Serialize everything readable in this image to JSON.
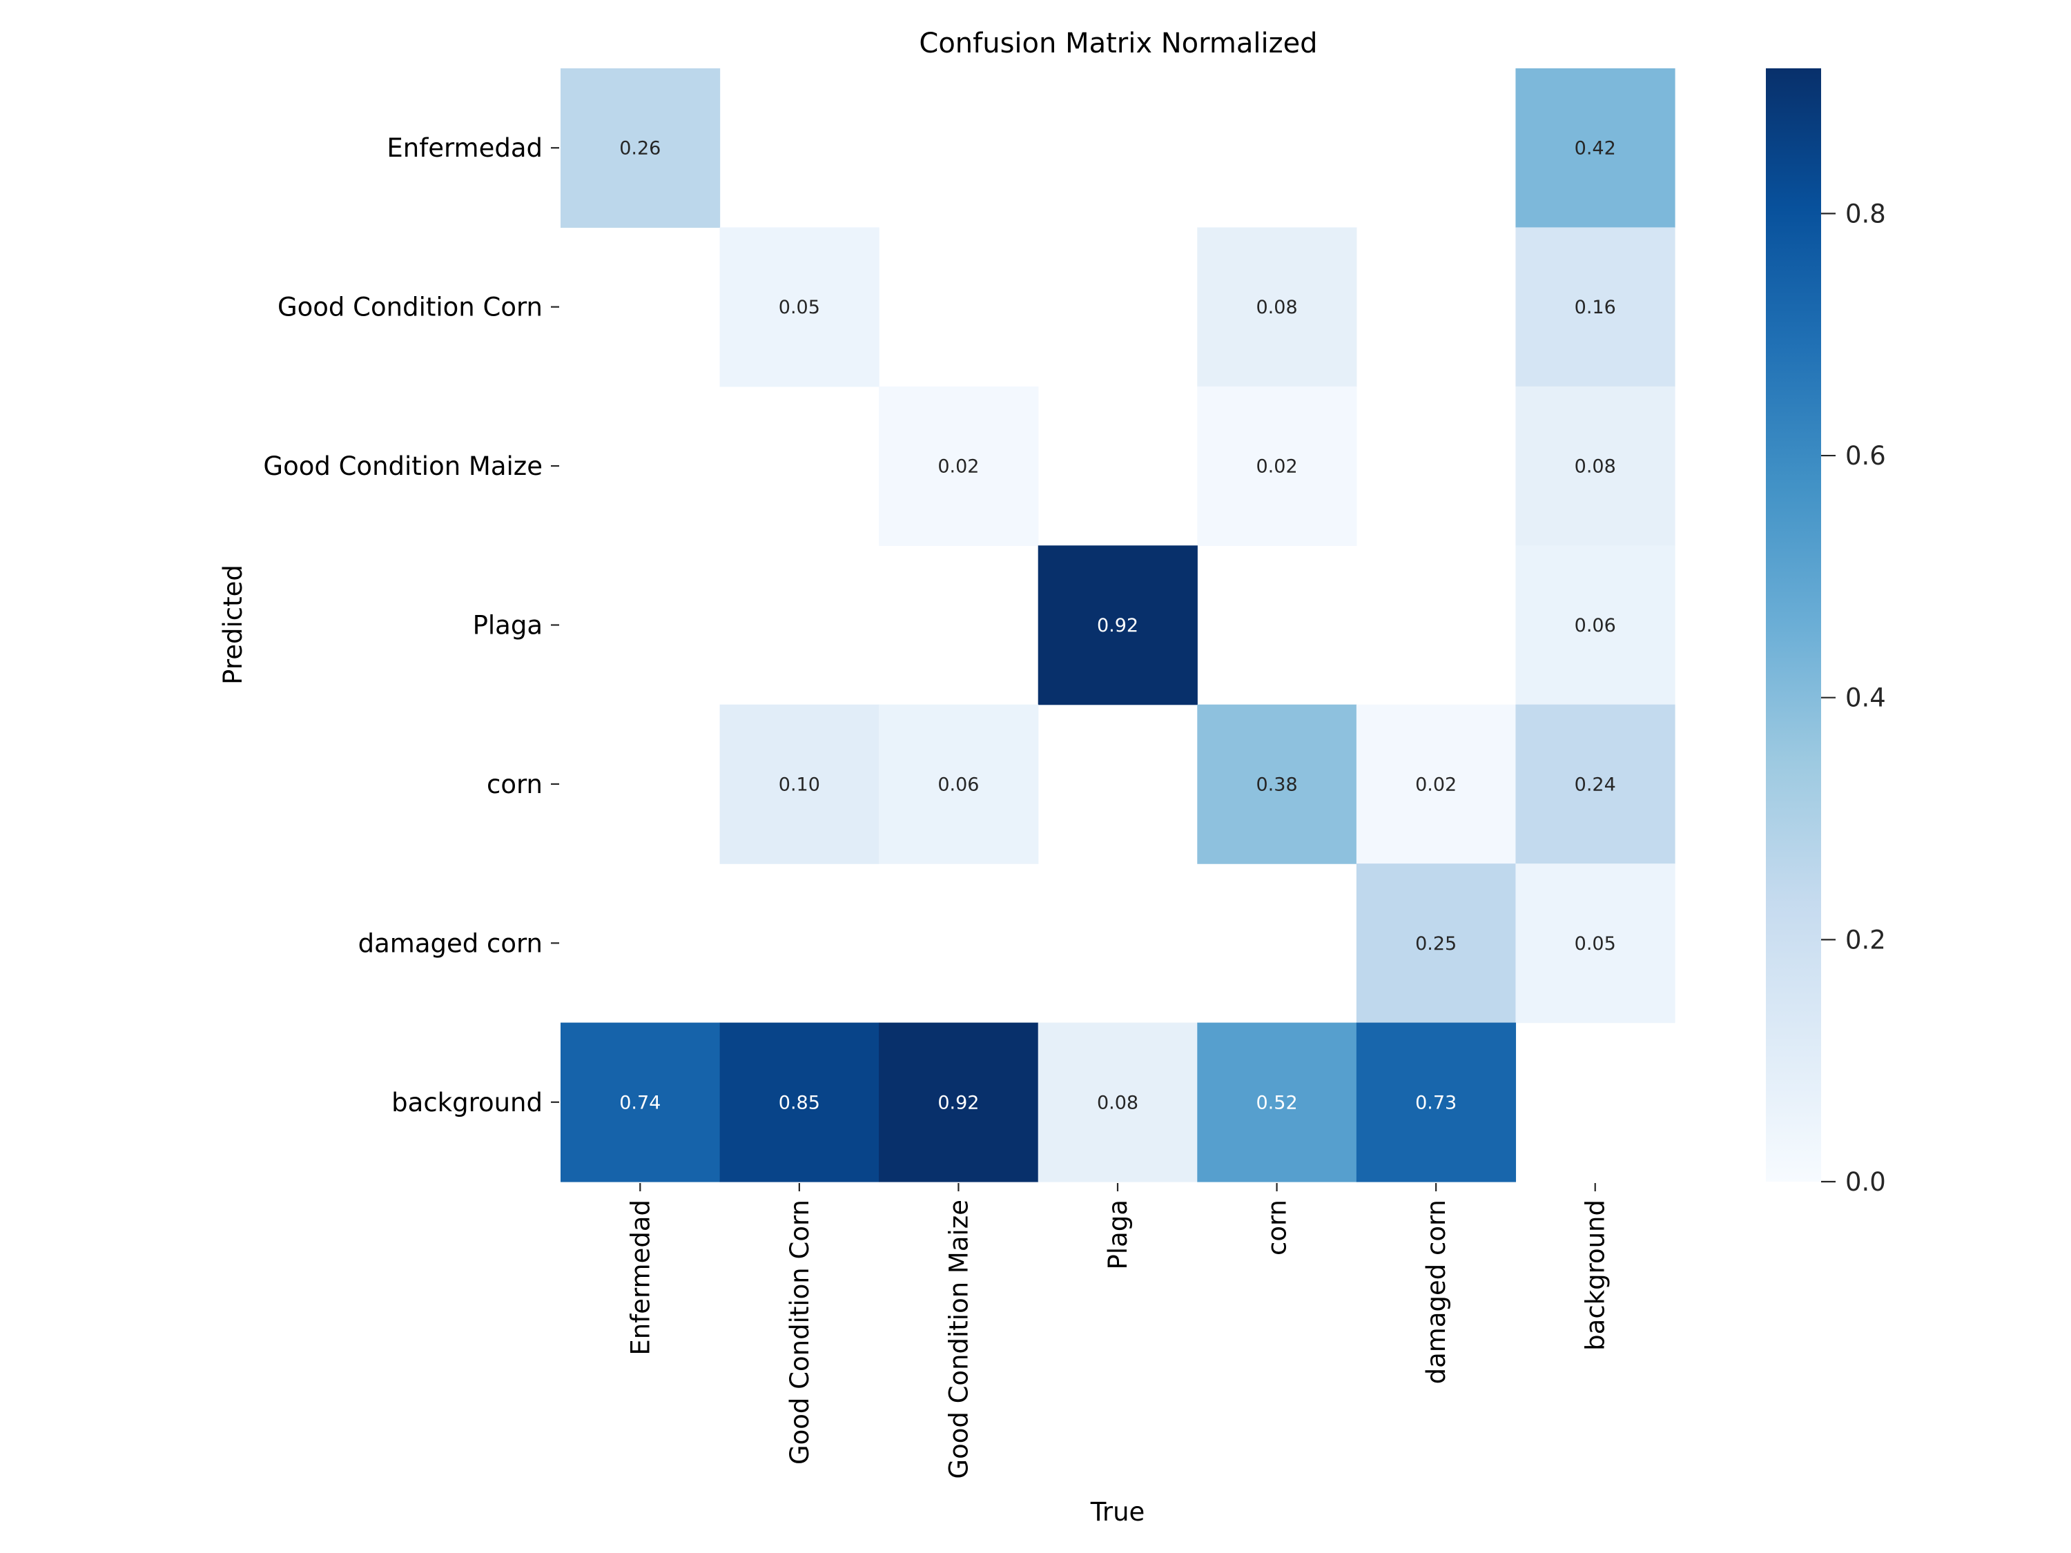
{
  "chart_data": {
    "type": "heatmap",
    "title": "Confusion Matrix Normalized",
    "xlabel": "True",
    "ylabel": "Predicted",
    "x_categories": [
      "Enfermedad",
      "Good Condition Corn",
      "Good Condition Maize",
      "Plaga",
      "corn",
      "damaged corn",
      "background"
    ],
    "y_categories": [
      "Enfermedad",
      "Good Condition Corn",
      "Good Condition Maize",
      "Plaga",
      "corn",
      "damaged corn",
      "background"
    ],
    "values": [
      [
        0.26,
        null,
        null,
        null,
        null,
        null,
        0.42
      ],
      [
        null,
        0.05,
        null,
        null,
        0.08,
        null,
        0.16
      ],
      [
        null,
        null,
        0.02,
        null,
        0.02,
        null,
        0.08
      ],
      [
        null,
        null,
        null,
        0.92,
        null,
        null,
        0.06
      ],
      [
        null,
        0.1,
        0.06,
        null,
        0.38,
        0.02,
        0.24
      ],
      [
        null,
        null,
        null,
        null,
        null,
        0.25,
        0.05
      ],
      [
        0.74,
        0.85,
        0.92,
        0.08,
        0.52,
        0.73,
        null
      ]
    ],
    "value_labels": [
      [
        "0.26",
        "",
        "",
        "",
        "",
        "",
        "0.42"
      ],
      [
        "",
        "0.05",
        "",
        "",
        "0.08",
        "",
        "0.16"
      ],
      [
        "",
        "",
        "0.02",
        "",
        "0.02",
        "",
        "0.08"
      ],
      [
        "",
        "",
        "",
        "0.92",
        "",
        "",
        "0.06"
      ],
      [
        "",
        "0.10",
        "0.06",
        "",
        "0.38",
        "0.02",
        "0.24"
      ],
      [
        "",
        "",
        "",
        "",
        "",
        "0.25",
        "0.05"
      ],
      [
        "0.74",
        "0.85",
        "0.92",
        "0.08",
        "0.52",
        "0.73",
        ""
      ]
    ],
    "colormap": "Blues",
    "vmin": 0.0,
    "vmax": 0.92,
    "colorbar": {
      "ticks": [
        0.0,
        0.2,
        0.4,
        0.6,
        0.8
      ],
      "tick_labels": [
        "0.0",
        "0.2",
        "0.4",
        "0.6",
        "0.8"
      ]
    },
    "empty_cells": "blank (values below threshold not shown)",
    "grid": false,
    "legend": "colorbar-right"
  }
}
